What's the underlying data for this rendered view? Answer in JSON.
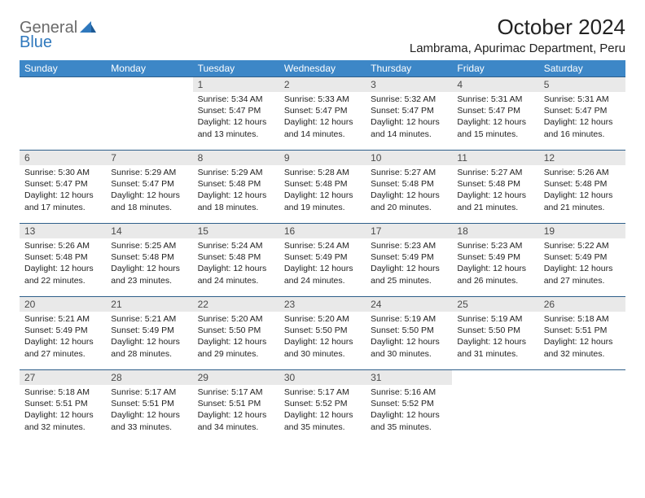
{
  "logo": {
    "line1": "General",
    "line2": "Blue"
  },
  "title": "October 2024",
  "location": "Lambrama, Apurimac Department, Peru",
  "colors": {
    "header_bg": "#3d87c7",
    "header_fg": "#ffffff",
    "daynum_bg": "#e9e9e9",
    "row_border": "#2f5f8a",
    "logo_blue": "#2f78bd"
  },
  "typography": {
    "title_fontsize": 26,
    "location_fontsize": 15,
    "dayheader_fontsize": 12,
    "cell_fontsize": 10.5
  },
  "day_headers": [
    "Sunday",
    "Monday",
    "Tuesday",
    "Wednesday",
    "Thursday",
    "Friday",
    "Saturday"
  ],
  "weeks": [
    [
      null,
      null,
      {
        "n": "1",
        "sunrise": "Sunrise: 5:34 AM",
        "sunset": "Sunset: 5:47 PM",
        "dl1": "Daylight: 12 hours",
        "dl2": "and 13 minutes."
      },
      {
        "n": "2",
        "sunrise": "Sunrise: 5:33 AM",
        "sunset": "Sunset: 5:47 PM",
        "dl1": "Daylight: 12 hours",
        "dl2": "and 14 minutes."
      },
      {
        "n": "3",
        "sunrise": "Sunrise: 5:32 AM",
        "sunset": "Sunset: 5:47 PM",
        "dl1": "Daylight: 12 hours",
        "dl2": "and 14 minutes."
      },
      {
        "n": "4",
        "sunrise": "Sunrise: 5:31 AM",
        "sunset": "Sunset: 5:47 PM",
        "dl1": "Daylight: 12 hours",
        "dl2": "and 15 minutes."
      },
      {
        "n": "5",
        "sunrise": "Sunrise: 5:31 AM",
        "sunset": "Sunset: 5:47 PM",
        "dl1": "Daylight: 12 hours",
        "dl2": "and 16 minutes."
      }
    ],
    [
      {
        "n": "6",
        "sunrise": "Sunrise: 5:30 AM",
        "sunset": "Sunset: 5:47 PM",
        "dl1": "Daylight: 12 hours",
        "dl2": "and 17 minutes."
      },
      {
        "n": "7",
        "sunrise": "Sunrise: 5:29 AM",
        "sunset": "Sunset: 5:47 PM",
        "dl1": "Daylight: 12 hours",
        "dl2": "and 18 minutes."
      },
      {
        "n": "8",
        "sunrise": "Sunrise: 5:29 AM",
        "sunset": "Sunset: 5:48 PM",
        "dl1": "Daylight: 12 hours",
        "dl2": "and 18 minutes."
      },
      {
        "n": "9",
        "sunrise": "Sunrise: 5:28 AM",
        "sunset": "Sunset: 5:48 PM",
        "dl1": "Daylight: 12 hours",
        "dl2": "and 19 minutes."
      },
      {
        "n": "10",
        "sunrise": "Sunrise: 5:27 AM",
        "sunset": "Sunset: 5:48 PM",
        "dl1": "Daylight: 12 hours",
        "dl2": "and 20 minutes."
      },
      {
        "n": "11",
        "sunrise": "Sunrise: 5:27 AM",
        "sunset": "Sunset: 5:48 PM",
        "dl1": "Daylight: 12 hours",
        "dl2": "and 21 minutes."
      },
      {
        "n": "12",
        "sunrise": "Sunrise: 5:26 AM",
        "sunset": "Sunset: 5:48 PM",
        "dl1": "Daylight: 12 hours",
        "dl2": "and 21 minutes."
      }
    ],
    [
      {
        "n": "13",
        "sunrise": "Sunrise: 5:26 AM",
        "sunset": "Sunset: 5:48 PM",
        "dl1": "Daylight: 12 hours",
        "dl2": "and 22 minutes."
      },
      {
        "n": "14",
        "sunrise": "Sunrise: 5:25 AM",
        "sunset": "Sunset: 5:48 PM",
        "dl1": "Daylight: 12 hours",
        "dl2": "and 23 minutes."
      },
      {
        "n": "15",
        "sunrise": "Sunrise: 5:24 AM",
        "sunset": "Sunset: 5:48 PM",
        "dl1": "Daylight: 12 hours",
        "dl2": "and 24 minutes."
      },
      {
        "n": "16",
        "sunrise": "Sunrise: 5:24 AM",
        "sunset": "Sunset: 5:49 PM",
        "dl1": "Daylight: 12 hours",
        "dl2": "and 24 minutes."
      },
      {
        "n": "17",
        "sunrise": "Sunrise: 5:23 AM",
        "sunset": "Sunset: 5:49 PM",
        "dl1": "Daylight: 12 hours",
        "dl2": "and 25 minutes."
      },
      {
        "n": "18",
        "sunrise": "Sunrise: 5:23 AM",
        "sunset": "Sunset: 5:49 PM",
        "dl1": "Daylight: 12 hours",
        "dl2": "and 26 minutes."
      },
      {
        "n": "19",
        "sunrise": "Sunrise: 5:22 AM",
        "sunset": "Sunset: 5:49 PM",
        "dl1": "Daylight: 12 hours",
        "dl2": "and 27 minutes."
      }
    ],
    [
      {
        "n": "20",
        "sunrise": "Sunrise: 5:21 AM",
        "sunset": "Sunset: 5:49 PM",
        "dl1": "Daylight: 12 hours",
        "dl2": "and 27 minutes."
      },
      {
        "n": "21",
        "sunrise": "Sunrise: 5:21 AM",
        "sunset": "Sunset: 5:49 PM",
        "dl1": "Daylight: 12 hours",
        "dl2": "and 28 minutes."
      },
      {
        "n": "22",
        "sunrise": "Sunrise: 5:20 AM",
        "sunset": "Sunset: 5:50 PM",
        "dl1": "Daylight: 12 hours",
        "dl2": "and 29 minutes."
      },
      {
        "n": "23",
        "sunrise": "Sunrise: 5:20 AM",
        "sunset": "Sunset: 5:50 PM",
        "dl1": "Daylight: 12 hours",
        "dl2": "and 30 minutes."
      },
      {
        "n": "24",
        "sunrise": "Sunrise: 5:19 AM",
        "sunset": "Sunset: 5:50 PM",
        "dl1": "Daylight: 12 hours",
        "dl2": "and 30 minutes."
      },
      {
        "n": "25",
        "sunrise": "Sunrise: 5:19 AM",
        "sunset": "Sunset: 5:50 PM",
        "dl1": "Daylight: 12 hours",
        "dl2": "and 31 minutes."
      },
      {
        "n": "26",
        "sunrise": "Sunrise: 5:18 AM",
        "sunset": "Sunset: 5:51 PM",
        "dl1": "Daylight: 12 hours",
        "dl2": "and 32 minutes."
      }
    ],
    [
      {
        "n": "27",
        "sunrise": "Sunrise: 5:18 AM",
        "sunset": "Sunset: 5:51 PM",
        "dl1": "Daylight: 12 hours",
        "dl2": "and 32 minutes."
      },
      {
        "n": "28",
        "sunrise": "Sunrise: 5:17 AM",
        "sunset": "Sunset: 5:51 PM",
        "dl1": "Daylight: 12 hours",
        "dl2": "and 33 minutes."
      },
      {
        "n": "29",
        "sunrise": "Sunrise: 5:17 AM",
        "sunset": "Sunset: 5:51 PM",
        "dl1": "Daylight: 12 hours",
        "dl2": "and 34 minutes."
      },
      {
        "n": "30",
        "sunrise": "Sunrise: 5:17 AM",
        "sunset": "Sunset: 5:52 PM",
        "dl1": "Daylight: 12 hours",
        "dl2": "and 35 minutes."
      },
      {
        "n": "31",
        "sunrise": "Sunrise: 5:16 AM",
        "sunset": "Sunset: 5:52 PM",
        "dl1": "Daylight: 12 hours",
        "dl2": "and 35 minutes."
      },
      null,
      null
    ]
  ]
}
